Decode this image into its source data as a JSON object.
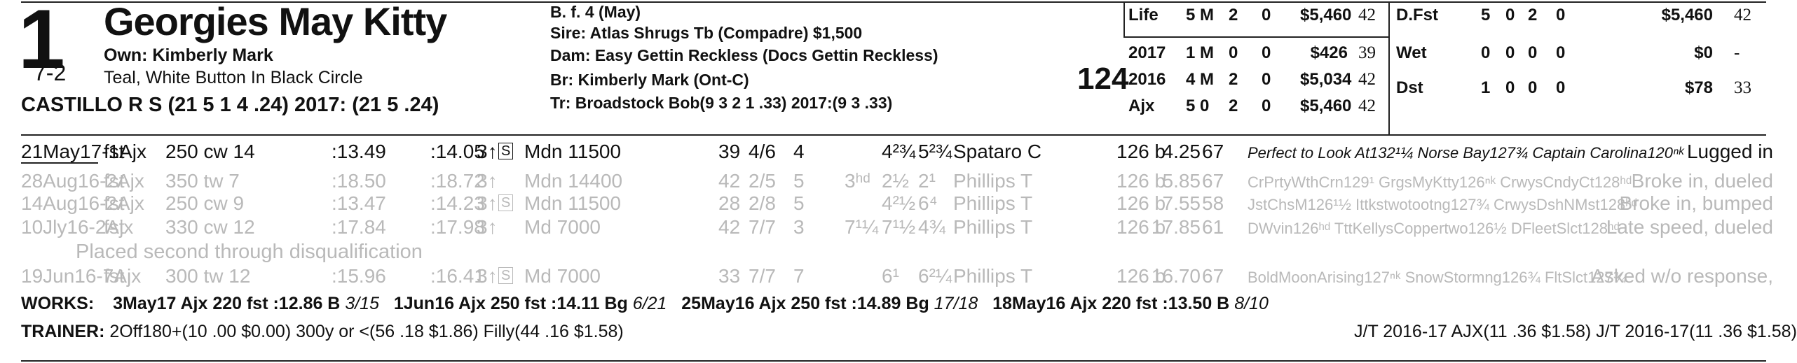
{
  "entry": {
    "post_position": "1",
    "morning_line": "7-2",
    "horse_name": "Georgies May Kitty",
    "owner": "Own: Kimberly Mark",
    "silks": "Teal, White Button In Black Circle",
    "jockey": "CASTILLO R S (21 5 1 4 .24) 2017: (21 5 .24)"
  },
  "pedigree": {
    "sex_age": "B. f. 4 (May)",
    "sire": "Sire: Atlas Shrugs Tb (Compadre) $1,500",
    "dam": "Dam: Easy Gettin Reckless (Docs Gettin Reckless)",
    "breeder": "Br:   Kimberly Mark (Ont-C)",
    "trainer": "Tr:   Broadstock Bob(9 3 2 1 .33)  2017:(9 3 .33)",
    "rating": "124"
  },
  "stats_left": [
    {
      "label": "Life",
      "starts": "5",
      "m": "M",
      "second": "2",
      "third": "0",
      "earnings": "$5,460",
      "speed": "42"
    },
    {
      "label": "2017",
      "starts": "1",
      "m": "M",
      "second": "0",
      "third": "0",
      "earnings": "$426",
      "speed": "39"
    },
    {
      "label": "2016",
      "starts": "4",
      "m": "M",
      "second": "2",
      "third": "0",
      "earnings": "$5,034",
      "speed": "42"
    },
    {
      "label": "Ajx",
      "starts": "5",
      "m": "0",
      "second": "2",
      "third": "0",
      "earnings": "$5,460",
      "speed": "42"
    }
  ],
  "stats_right": [
    {
      "label": "D.Fst",
      "starts": "5",
      "wins": "0",
      "second": "2",
      "third": "0",
      "earnings": "$5,460",
      "speed": "42"
    },
    {
      "label": "Wet",
      "starts": "0",
      "wins": "0",
      "second": "0",
      "third": "0",
      "earnings": "$0",
      "speed": "-"
    },
    {
      "label": "Dst",
      "starts": "1",
      "wins": "0",
      "second": "0",
      "third": "0",
      "earnings": "$78",
      "speed": "33"
    }
  ],
  "past_performances": [
    {
      "date": "21May17-1Ajx",
      "cond": "fst",
      "dist": "250 cw 14",
      "f1": ":13.49",
      "f2": ":14.05",
      "age": "3↑",
      "s": "S",
      "race": "Mdn 11500",
      "spd": "39",
      "pp": "4/6",
      "st": "4",
      "c1": "",
      "c2": "4²¾",
      "fin": "5²¾",
      "jock": "Spataro C",
      "wt": "126 b",
      "odds": "4.25",
      "ix": "67",
      "comp": "Perfect to Look At132¹¼ Norse Bay127¾ Captain Carolina120ⁿᵏ",
      "comment": "Lugged in"
    },
    {
      "date": "28Aug16-2Ajx",
      "cond": "fst",
      "dist": "350 tw 7",
      "f1": ":18.50",
      "f2": ":18.72",
      "age": "3↑",
      "s": "",
      "race": "Mdn 14400",
      "spd": "42",
      "pp": "2/5",
      "st": "5",
      "c1": "3ʰᵈ",
      "c2": "2½",
      "fin": "2¹",
      "jock": "Phillips T",
      "wt": "126 b",
      "odds": "5.85",
      "ix": "67",
      "comp": "CrPrtyWthCrn129¹ GrgsMyKtty126ⁿᵏ CrwysCndyCt128ʰᵈ",
      "comment": "Broke in, dueled"
    },
    {
      "date": "14Aug16-2Ajx",
      "cond": "fst",
      "dist": "250 cw 9",
      "f1": ":13.47",
      "f2": ":14.23",
      "age": "3↑",
      "s": "S",
      "race": "Mdn 11500",
      "spd": "28",
      "pp": "2/8",
      "st": "5",
      "c1": "",
      "c2": "4²½",
      "fin": "6⁴",
      "jock": "Phillips T",
      "wt": "126 b",
      "odds": "7.55",
      "ix": "58",
      "comp": "JstChsM126¹½ Ittkstwotootng127¾ CrwysDshNMst128ʰᵈ",
      "comment": "Broke in, bumped"
    },
    {
      "date": "10Jly16-2Ajx",
      "cond": "fst",
      "dist": "330 cw 12",
      "f1": ":17.84",
      "f2": ":17.98",
      "age": "3↑",
      "s": "",
      "race": "Md 7000",
      "spd": "42",
      "pp": "7/7",
      "st": "3",
      "c1": "7¹¼",
      "c2": "7¹½",
      "fin": "4¾",
      "jock": "Phillips T",
      "wt": "126 b",
      "odds": "17.85",
      "ix": "61",
      "comp": "DWvin126ʰᵈ TttKellysCoppertwo126½ DFleetSlct128ʰᵈ",
      "comment": "Late speed, dueled"
    },
    {
      "date": "19Jun16-7Ajx",
      "cond": "fst",
      "dist": "300 tw 12",
      "f1": ":15.96",
      "f2": ":16.41",
      "age": "3↑",
      "s": "S",
      "race": "Md 7000",
      "spd": "33",
      "pp": "7/7",
      "st": "7",
      "c1": "",
      "c2": "6¹",
      "fin": "6²¼",
      "jock": "Phillips T",
      "wt": "126 b",
      "odds": "16.70",
      "ix": "67",
      "comp": "BoldMoonArising127ⁿᵏ SnowStormng126¾ FltSlct127¾",
      "comment": "Asked w/o response,"
    }
  ],
  "dq_note": "Placed second through disqualification",
  "works": {
    "label": "WORKS:",
    "items": [
      {
        "text": "3May17 Ajx 220 fst :12.86 B",
        "rank": "3/15"
      },
      {
        "text": "1Jun16 Ajx 250 fst :14.11 Bg",
        "rank": "6/21"
      },
      {
        "text": "25May16 Ajx 250 fst :14.89 Bg",
        "rank": "17/18"
      },
      {
        "text": "18May16 Ajx 220 fst :13.50 B",
        "rank": "8/10"
      }
    ]
  },
  "trainer_stats": {
    "label": "TRAINER:",
    "text": "2Off180+(10 .00 $0.00) 300y or <(56 .18 $1.86) Filly(44 .16 $1.58)",
    "jt": "J/T 2016-17 AJX(11 .36 $1.58)  J/T 2016-17(11 .36 $1.58)"
  }
}
